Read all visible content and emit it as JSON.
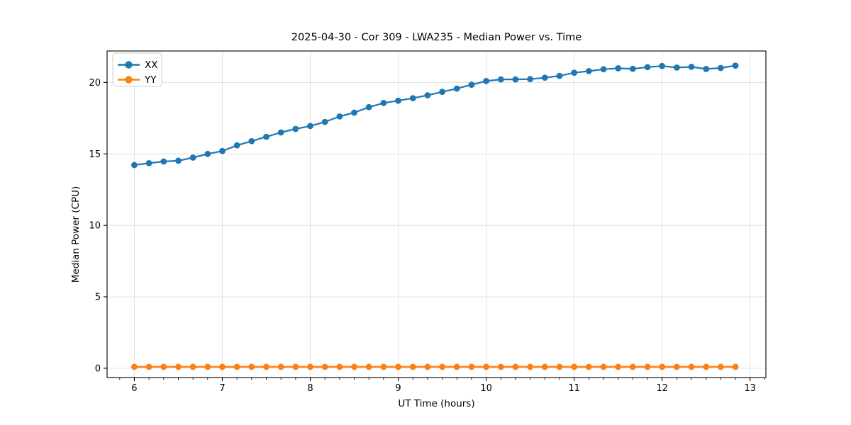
{
  "figure_title": "2025-04-30 - Cor 309 - LWA235 - Median Power vs. Time",
  "chart_data": {
    "type": "line",
    "title": "2025-04-30 - Cor 309 - LWA235 - Median Power vs. Time",
    "xlabel": "UT Time (hours)",
    "ylabel": "Median Power (CPU)",
    "x": [
      6.0,
      6.1667,
      6.3333,
      6.5,
      6.6667,
      6.8333,
      7.0,
      7.1667,
      7.3333,
      7.5,
      7.6667,
      7.8333,
      8.0,
      8.1667,
      8.3333,
      8.5,
      8.6667,
      8.8333,
      9.0,
      9.1667,
      9.3333,
      9.5,
      9.6667,
      9.8333,
      10.0,
      10.1667,
      10.3333,
      10.5,
      10.6667,
      10.8333,
      11.0,
      11.1667,
      11.3333,
      11.5,
      11.6667,
      11.8333,
      12.0,
      12.1667,
      12.3333,
      12.5,
      12.6667,
      12.8333
    ],
    "series": [
      {
        "name": "XX",
        "color": "#1f77b4",
        "values": [
          14.22,
          14.35,
          14.47,
          14.52,
          14.74,
          15.0,
          15.2,
          15.6,
          15.89,
          16.2,
          16.5,
          16.75,
          16.95,
          17.24,
          17.62,
          17.89,
          18.27,
          18.56,
          18.72,
          18.9,
          19.1,
          19.34,
          19.57,
          19.84,
          20.1,
          20.21,
          20.21,
          20.23,
          20.33,
          20.46,
          20.68,
          20.79,
          20.92,
          20.99,
          20.95,
          21.07,
          21.15,
          21.04,
          21.09,
          20.94,
          21.01,
          21.18
        ]
      },
      {
        "name": "YY",
        "color": "#ff7f0e",
        "values": [
          0.1,
          0.1,
          0.1,
          0.1,
          0.1,
          0.1,
          0.1,
          0.1,
          0.1,
          0.1,
          0.1,
          0.1,
          0.1,
          0.1,
          0.1,
          0.1,
          0.1,
          0.1,
          0.1,
          0.1,
          0.1,
          0.1,
          0.1,
          0.1,
          0.1,
          0.1,
          0.1,
          0.1,
          0.1,
          0.1,
          0.1,
          0.1,
          0.1,
          0.1,
          0.1,
          0.1,
          0.1,
          0.1,
          0.1,
          0.1,
          0.1,
          0.1
        ]
      }
    ],
    "xlim": [
      5.69,
      13.18
    ],
    "ylim": [
      -0.65,
      22.2
    ],
    "xticks": [
      6,
      7,
      8,
      9,
      10,
      11,
      12,
      13
    ],
    "yticks": [
      0,
      5,
      10,
      15,
      20
    ],
    "x_minor_step": 0.16667,
    "grid": true,
    "legend_position": "upper-left",
    "marker": "circle",
    "line_width": 2.2,
    "marker_radius": 4.4,
    "grid_color": "#e0e0e0",
    "spine_color": "#000000",
    "legend_border_color": "#cccccc",
    "legend_bg_color": "#ffffff"
  }
}
